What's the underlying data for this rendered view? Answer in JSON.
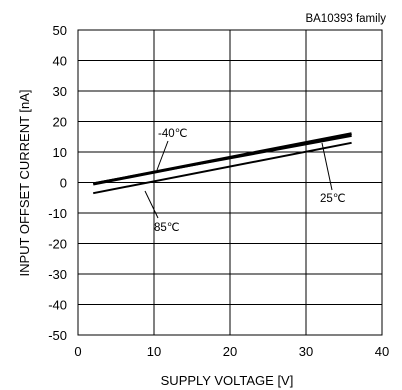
{
  "chart_data": {
    "type": "line",
    "note": "BA10393 family",
    "xlabel": "SUPPLY VOLTAGE [V]",
    "ylabel": "INPUT OFFSET CURRENT [nA]",
    "xlim": [
      0,
      40
    ],
    "ylim": [
      -50,
      50
    ],
    "xticks": [
      "0",
      "10",
      "20",
      "30",
      "40"
    ],
    "yticks": [
      "50",
      "40",
      "30",
      "20",
      "10",
      "0",
      "-10",
      "-20",
      "-30",
      "-40",
      "-50"
    ],
    "grid": true,
    "series": [
      {
        "name": "-40℃",
        "x": [
          2,
          36
        ],
        "y": [
          -0.5,
          16
        ]
      },
      {
        "name": "25℃",
        "x": [
          2,
          36
        ],
        "y": [
          -0.3,
          15.3
        ]
      },
      {
        "name": "85℃",
        "x": [
          2,
          36
        ],
        "y": [
          -3.5,
          13
        ]
      }
    ]
  }
}
